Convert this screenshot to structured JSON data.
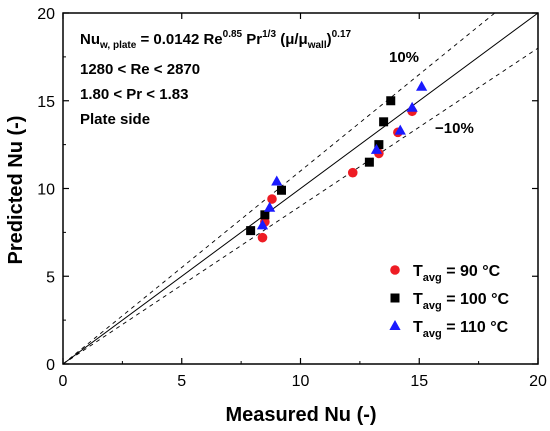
{
  "chart_data": {
    "type": "scatter",
    "xlabel": "Measured Nu (-)",
    "ylabel": "Predicted Nu (-)",
    "xlim": [
      0,
      20
    ],
    "ylim": [
      0,
      20
    ],
    "xticks": [
      "0",
      "5",
      "10",
      "15",
      "20"
    ],
    "yticks": [
      "0",
      "5",
      "10",
      "15",
      "20"
    ],
    "grid": false,
    "legend_position": "bottom-right",
    "annotations": {
      "equation": {
        "lhs": "Nu",
        "lhs_sub": "w, plate",
        "coef": " = 0.0142 Re",
        "re_exp": "0.85",
        "pr": " Pr",
        "pr_exp": "1/3",
        "mu": " (μ/μ",
        "mu_sub": "wall",
        "close": ")",
        "mu_exp": "0.17"
      },
      "re_range": "1280 < Re < 2870",
      "pr_range": "1.80 < Pr < 1.83",
      "side": "Plate side",
      "plus_band": "10%",
      "minus_band": "−10%"
    },
    "reference_lines": [
      {
        "name": "parity",
        "slope": 1.0,
        "style": "solid"
      },
      {
        "name": "plus-10",
        "slope": 1.1,
        "style": "dashed"
      },
      {
        "name": "minus-10",
        "slope": 0.9,
        "style": "dashed"
      }
    ],
    "series": [
      {
        "name": "T",
        "name_sub": "avg",
        "name_rest": " = 90 °C",
        "marker": "circle",
        "color": "#ee1c24",
        "points": [
          [
            8.4,
            7.2
          ],
          [
            8.5,
            8.1
          ],
          [
            8.8,
            9.4
          ],
          [
            12.2,
            10.9
          ],
          [
            13.3,
            12.0
          ],
          [
            14.1,
            13.2
          ],
          [
            14.7,
            14.4
          ]
        ]
      },
      {
        "name": "T",
        "name_sub": "avg",
        "name_rest": " = 100 °C",
        "marker": "square",
        "color": "#000000",
        "points": [
          [
            7.9,
            7.6
          ],
          [
            8.5,
            8.5
          ],
          [
            9.2,
            9.9
          ],
          [
            12.9,
            11.5
          ],
          [
            13.3,
            12.5
          ],
          [
            13.5,
            13.8
          ],
          [
            13.8,
            15.0
          ]
        ]
      },
      {
        "name": "T",
        "name_sub": "avg",
        "name_rest": " = 110 °C",
        "marker": "triangle",
        "color": "#1a1aff",
        "points": [
          [
            8.4,
            7.9
          ],
          [
            8.7,
            8.9
          ],
          [
            9.0,
            10.4
          ],
          [
            13.2,
            12.2
          ],
          [
            14.2,
            13.3
          ],
          [
            14.7,
            14.6
          ],
          [
            15.1,
            15.8
          ]
        ]
      }
    ]
  }
}
